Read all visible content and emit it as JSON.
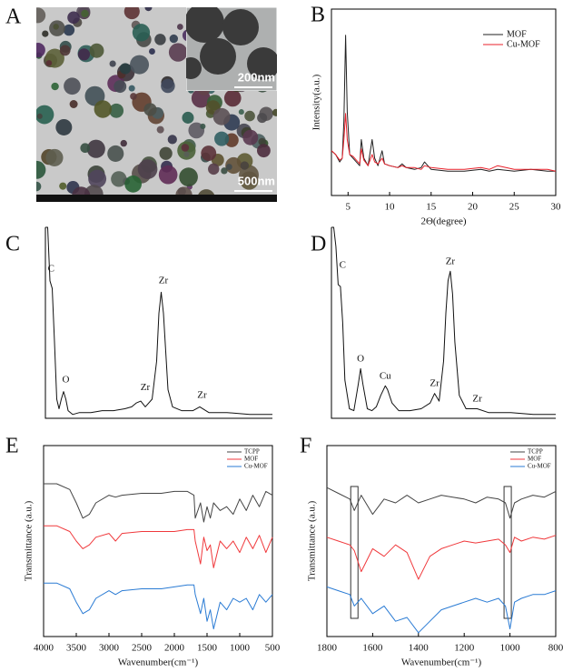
{
  "image": {
    "panel": "A",
    "inset_scale_bar": "200nm",
    "scale_bar": "500nm"
  },
  "chart_data": [
    {
      "type": "line",
      "panel": "B",
      "xlabel": "2Θ(degree)",
      "ylabel": "Intensity(a.u.)",
      "legend": "top right",
      "xlim": [
        3,
        30
      ],
      "xticks": [
        5,
        10,
        15,
        20,
        25,
        30
      ],
      "ylim": [
        0,
        100
      ],
      "x": [
        3,
        3.5,
        4,
        4.3,
        4.5,
        4.7,
        4.9,
        5.2,
        5.6,
        6,
        6.4,
        6.6,
        6.9,
        7.4,
        7.9,
        8.2,
        8.6,
        9.1,
        9.4,
        10,
        11,
        11.5,
        12,
        13,
        13.8,
        14.2,
        15,
        17,
        19,
        21,
        22,
        23,
        25,
        27,
        29,
        30
      ],
      "series": [
        {
          "name": "MOF",
          "color": "#222222",
          "values": [
            24,
            22,
            18,
            20,
            40,
            86,
            45,
            22,
            20,
            18,
            16,
            30,
            20,
            16,
            30,
            20,
            16,
            24,
            17,
            16,
            15,
            17,
            15,
            14,
            15,
            18,
            14,
            13,
            13,
            14,
            13,
            14,
            13,
            14,
            13,
            13
          ]
        },
        {
          "name": "Cu-MOF",
          "color": "#e8212b",
          "values": [
            24,
            22,
            19,
            20,
            30,
            44,
            30,
            22,
            21,
            19,
            17,
            25,
            19,
            16,
            22,
            18,
            17,
            20,
            17,
            16,
            15,
            16,
            15,
            15,
            14,
            16,
            15,
            14,
            14,
            15,
            14,
            16,
            14,
            14,
            14,
            13
          ]
        }
      ]
    },
    {
      "type": "line",
      "panel": "C",
      "xlim": [
        0,
        100
      ],
      "ylim": [
        0,
        100
      ],
      "x": [
        0,
        1,
        2,
        3,
        4,
        5,
        6,
        7,
        8,
        9,
        10,
        12,
        15,
        20,
        25,
        30,
        35,
        38,
        40,
        42,
        44,
        47,
        49,
        50,
        51,
        52,
        53,
        54,
        56,
        60,
        65,
        68,
        72,
        80,
        90,
        100
      ],
      "series": [
        {
          "color": "#111111",
          "values": [
            100,
            100,
            72,
            68,
            40,
            10,
            5,
            10,
            14,
            10,
            4,
            2,
            3,
            3,
            4,
            4,
            5,
            6,
            8,
            9,
            6,
            10,
            30,
            55,
            66,
            55,
            35,
            15,
            6,
            4,
            4,
            6,
            3,
            3,
            2,
            2
          ]
        }
      ],
      "annotations": [
        {
          "text": "C",
          "x": 2.5,
          "y": 78
        },
        {
          "text": "O",
          "x": 9,
          "y": 20
        },
        {
          "text": "Zr",
          "x": 44,
          "y": 16
        },
        {
          "text": "Zr",
          "x": 52,
          "y": 72
        },
        {
          "text": "Zr",
          "x": 69,
          "y": 12
        }
      ]
    },
    {
      "type": "line",
      "panel": "D",
      "xlim": [
        0,
        100
      ],
      "ylim": [
        0,
        100
      ],
      "x": [
        0,
        1,
        2,
        3,
        4,
        5,
        6,
        8,
        10,
        12,
        13,
        14,
        16,
        18,
        20,
        22,
        24,
        25,
        27,
        30,
        35,
        40,
        44,
        46,
        48,
        50,
        51,
        52,
        53,
        54,
        55,
        57,
        60,
        65,
        70,
        80,
        90,
        100
      ],
      "series": [
        {
          "color": "#111111",
          "values": [
            100,
            100,
            90,
            70,
            69,
            50,
            20,
            5,
            4,
            18,
            26,
            18,
            5,
            4,
            6,
            12,
            17,
            15,
            8,
            4,
            4,
            5,
            8,
            13,
            9,
            30,
            55,
            72,
            77,
            65,
            40,
            12,
            5,
            5,
            3,
            3,
            2,
            2
          ]
        }
      ],
      "annotations": [
        {
          "text": "C",
          "x": 5,
          "y": 80
        },
        {
          "text": "O",
          "x": 13,
          "y": 31
        },
        {
          "text": "Cu",
          "x": 24,
          "y": 22
        },
        {
          "text": "Zr",
          "x": 46,
          "y": 18
        },
        {
          "text": "Zr",
          "x": 53,
          "y": 82
        },
        {
          "text": "Zr",
          "x": 65,
          "y": 10
        }
      ]
    },
    {
      "type": "line",
      "panel": "E",
      "xlabel": "Wavenumber(cm⁻¹)",
      "ylabel": "Transmittance (a.u.)",
      "legend": "top right",
      "xlim": [
        4000,
        500
      ],
      "xticks": [
        4000,
        3500,
        3000,
        2500,
        2000,
        1500,
        1000,
        500
      ],
      "ylim": [
        0,
        100
      ],
      "x": [
        4000,
        3800,
        3600,
        3500,
        3400,
        3300,
        3200,
        3000,
        2900,
        2800,
        2500,
        2200,
        2000,
        1800,
        1700,
        1680,
        1600,
        1550,
        1500,
        1450,
        1400,
        1300,
        1200,
        1100,
        1000,
        900,
        800,
        700,
        600,
        500
      ],
      "series": [
        {
          "name": "TCPP",
          "color": "#444444",
          "values": [
            80,
            80,
            77,
            70,
            62,
            64,
            70,
            74,
            73,
            74,
            75,
            75,
            76,
            76,
            74,
            62,
            70,
            60,
            68,
            62,
            70,
            66,
            68,
            64,
            72,
            66,
            74,
            68,
            76,
            74
          ]
        },
        {
          "name": "MOF",
          "color": "#f0393c",
          "values": [
            58,
            58,
            55,
            50,
            46,
            48,
            52,
            54,
            50,
            54,
            55,
            55,
            55,
            56,
            56,
            50,
            38,
            52,
            45,
            48,
            36,
            50,
            46,
            50,
            44,
            52,
            46,
            53,
            44,
            52
          ]
        },
        {
          "name": "Cu-MOF",
          "color": "#2a7bd4",
          "values": [
            28,
            28,
            25,
            18,
            12,
            14,
            20,
            24,
            22,
            24,
            25,
            25,
            26,
            27,
            27,
            22,
            12,
            20,
            8,
            14,
            4,
            18,
            14,
            20,
            18,
            20,
            14,
            22,
            18,
            22
          ]
        }
      ]
    },
    {
      "type": "line",
      "panel": "F",
      "xlabel": "Wavenumber(cm⁻¹)",
      "ylabel": "Transmittance (a.u.)",
      "legend": "top right",
      "xlim": [
        1800,
        800
      ],
      "xticks": [
        1800,
        1600,
        1400,
        1200,
        1000,
        800
      ],
      "ylim": [
        0,
        100
      ],
      "highlight_x": [
        1680,
        1010
      ],
      "x": [
        1800,
        1750,
        1700,
        1680,
        1650,
        1600,
        1550,
        1500,
        1450,
        1400,
        1350,
        1300,
        1250,
        1200,
        1150,
        1100,
        1050,
        1020,
        1000,
        980,
        950,
        900,
        850,
        800
      ],
      "series": [
        {
          "name": "TCPP",
          "color": "#444444",
          "values": [
            78,
            75,
            72,
            66,
            74,
            64,
            72,
            70,
            74,
            70,
            72,
            74,
            73,
            72,
            70,
            73,
            72,
            70,
            62,
            70,
            72,
            74,
            73,
            76
          ]
        },
        {
          "name": "MOF",
          "color": "#f0393c",
          "values": [
            52,
            50,
            48,
            45,
            34,
            46,
            42,
            48,
            44,
            30,
            42,
            46,
            48,
            50,
            49,
            50,
            51,
            48,
            44,
            52,
            50,
            52,
            51,
            53
          ]
        },
        {
          "name": "Cu-MOF",
          "color": "#2a7bd4",
          "values": [
            26,
            24,
            22,
            16,
            20,
            12,
            16,
            8,
            10,
            2,
            8,
            14,
            16,
            18,
            20,
            18,
            20,
            16,
            4,
            18,
            20,
            22,
            22,
            24
          ]
        }
      ]
    }
  ]
}
